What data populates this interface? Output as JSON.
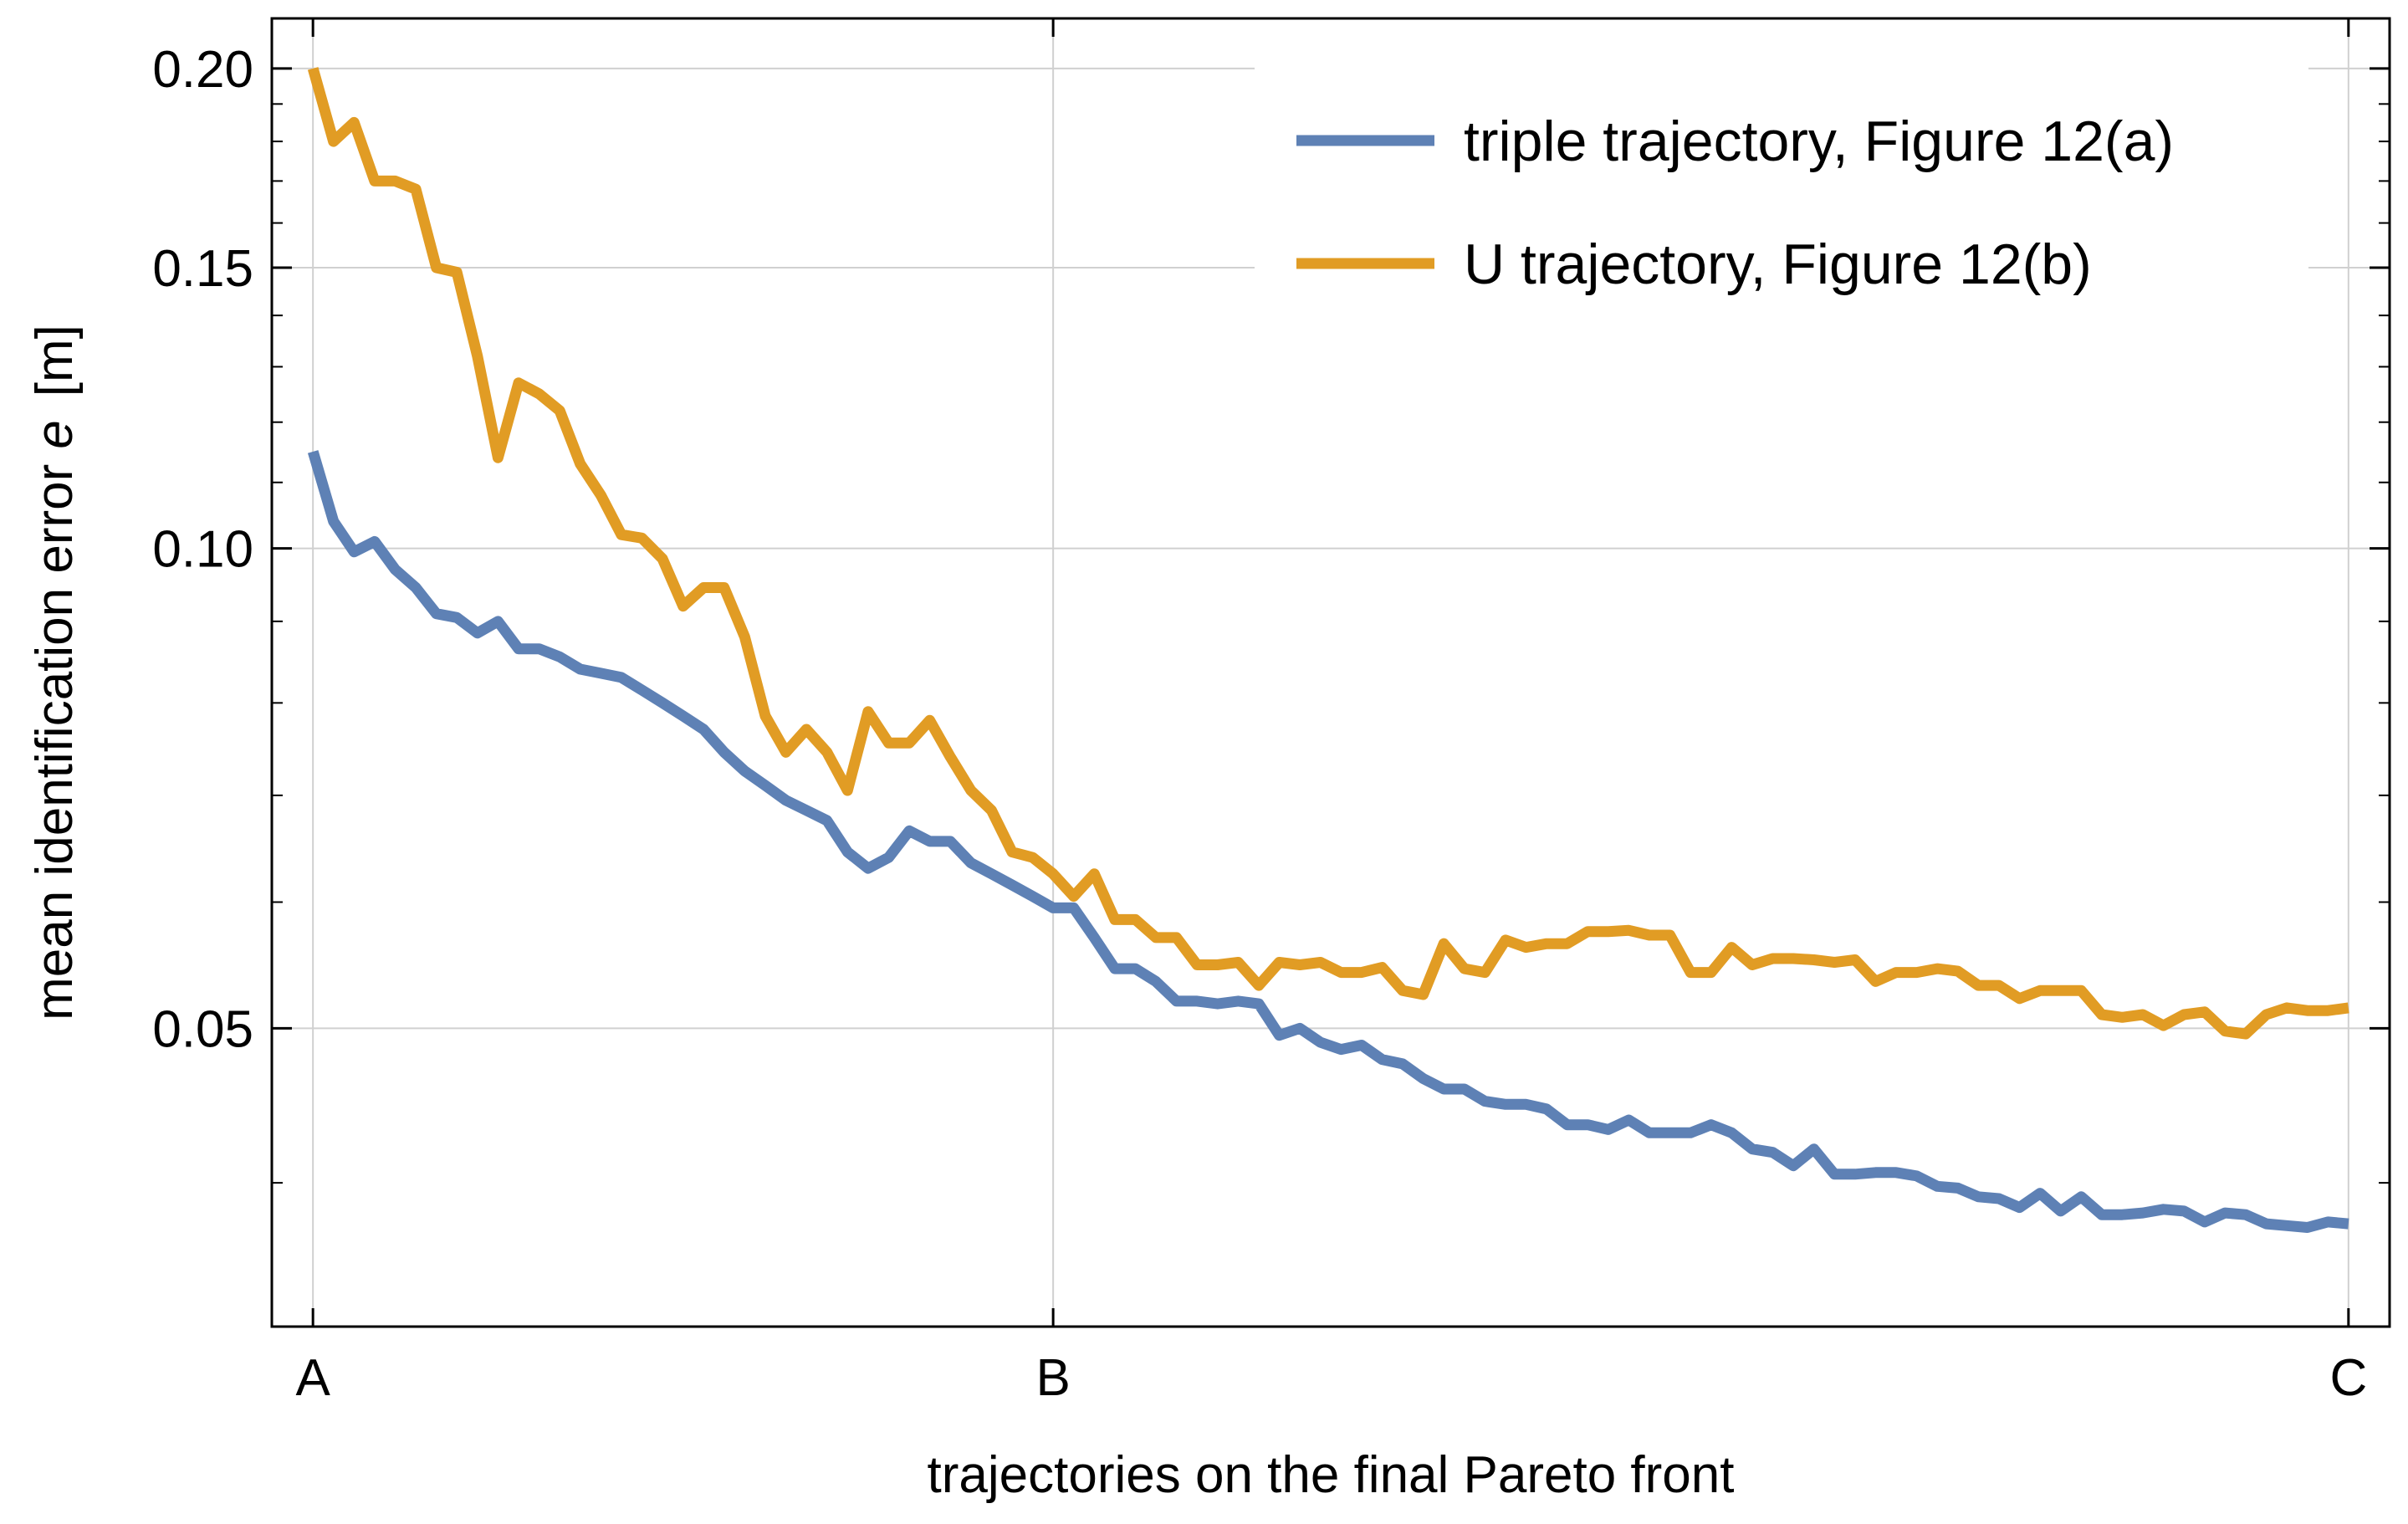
{
  "chart_data": {
    "type": "line",
    "title": "",
    "xlabel": "trajectories on the final Pareto front",
    "ylabel_prefix": "mean identification error",
    "ylabel_symbol": "e",
    "ylabel_unit": "[m]",
    "yscale": "log",
    "ylim": [
      0.0325,
      0.215
    ],
    "xlim": [
      -2,
      101
    ],
    "grid": true,
    "legend_position": "top-right",
    "x_ticks": [
      {
        "value": 0,
        "label": "A"
      },
      {
        "value": 36,
        "label": "B"
      },
      {
        "value": 99,
        "label": "C"
      }
    ],
    "y_ticks": [
      {
        "value": 0.05,
        "label": "0.05"
      },
      {
        "value": 0.1,
        "label": "0.10"
      },
      {
        "value": 0.15,
        "label": "0.15"
      },
      {
        "value": 0.2,
        "label": "0.20"
      }
    ],
    "y_minor_ticks": [
      0.04,
      0.06,
      0.07,
      0.08,
      0.09,
      0.11,
      0.12,
      0.13,
      0.14,
      0.16,
      0.17,
      0.18,
      0.19
    ],
    "series": [
      {
        "name": "triple trajectory, Figure 12(a)",
        "color": "#5e81b5",
        "values": [
          0.115,
          0.104,
          0.0995,
          0.101,
          0.097,
          0.0945,
          0.091,
          0.0905,
          0.0885,
          0.09,
          0.0865,
          0.0865,
          0.0855,
          0.084,
          0.0835,
          0.083,
          0.0815,
          0.08,
          0.0785,
          0.077,
          0.0745,
          0.0725,
          0.071,
          0.0695,
          0.0685,
          0.0675,
          0.0645,
          0.063,
          0.064,
          0.0665,
          0.0655,
          0.0655,
          0.0635,
          0.0625,
          0.0615,
          0.0605,
          0.0595,
          0.0595,
          0.057,
          0.0545,
          0.0545,
          0.0535,
          0.052,
          0.052,
          0.0518,
          0.052,
          0.0518,
          0.0495,
          0.05,
          0.049,
          0.0485,
          0.0488,
          0.0478,
          0.0475,
          0.0465,
          0.0458,
          0.0458,
          0.045,
          0.0448,
          0.0448,
          0.0445,
          0.0435,
          0.0435,
          0.0432,
          0.0438,
          0.043,
          0.043,
          0.043,
          0.0435,
          0.043,
          0.042,
          0.0418,
          0.041,
          0.042,
          0.0405,
          0.0405,
          0.0406,
          0.0406,
          0.0404,
          0.0398,
          0.0397,
          0.0392,
          0.0391,
          0.0386,
          0.0394,
          0.0384,
          0.0392,
          0.0382,
          0.0382,
          0.0383,
          0.0385,
          0.0384,
          0.0378,
          0.0383,
          0.0382,
          0.0377,
          0.0376,
          0.0375,
          0.0378,
          0.0377
        ]
      },
      {
        "name": "U trajectory, Figure 12(b)",
        "color": "#e19c24",
        "values": [
          0.2,
          0.18,
          0.185,
          0.17,
          0.17,
          0.168,
          0.15,
          0.149,
          0.132,
          0.114,
          0.127,
          0.125,
          0.122,
          0.113,
          0.108,
          0.102,
          0.1015,
          0.0985,
          0.092,
          0.0945,
          0.0945,
          0.088,
          0.0785,
          0.0745,
          0.077,
          0.0745,
          0.0705,
          0.079,
          0.0755,
          0.0755,
          0.078,
          0.074,
          0.0705,
          0.0685,
          0.0645,
          0.064,
          0.0625,
          0.0605,
          0.0625,
          0.0585,
          0.0585,
          0.057,
          0.057,
          0.0548,
          0.0548,
          0.055,
          0.0532,
          0.055,
          0.0548,
          0.055,
          0.0542,
          0.0542,
          0.0546,
          0.0528,
          0.0525,
          0.0565,
          0.0545,
          0.0542,
          0.0568,
          0.0562,
          0.0565,
          0.0565,
          0.0575,
          0.0575,
          0.0576,
          0.0572,
          0.0572,
          0.0542,
          0.0542,
          0.0562,
          0.0548,
          0.0553,
          0.0553,
          0.0552,
          0.055,
          0.0552,
          0.0535,
          0.0542,
          0.0542,
          0.0545,
          0.0543,
          0.0532,
          0.0532,
          0.0522,
          0.0528,
          0.0528,
          0.0528,
          0.051,
          0.0508,
          0.051,
          0.0502,
          0.051,
          0.0512,
          0.0498,
          0.0496,
          0.051,
          0.0515,
          0.0513,
          0.0513,
          0.0515
        ]
      }
    ]
  }
}
